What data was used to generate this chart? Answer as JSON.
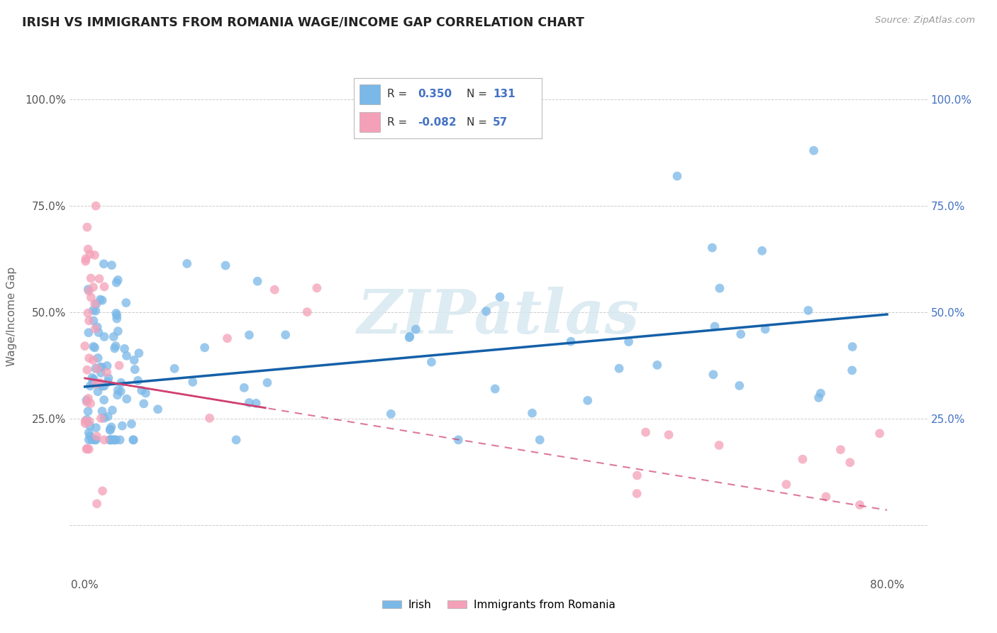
{
  "title": "IRISH VS IMMIGRANTS FROM ROMANIA WAGE/INCOME GAP CORRELATION CHART",
  "source": "Source: ZipAtlas.com",
  "ylabel": "Wage/Income Gap",
  "legend_irish": "Irish",
  "legend_romania": "Immigrants from Romania",
  "R_irish": 0.35,
  "N_irish": 131,
  "R_romania": -0.082,
  "N_romania": 57,
  "irish_color": "#7ab8e8",
  "romania_color": "#f4a0b8",
  "irish_line_color": "#1460a8",
  "romania_line_color": "#d04070",
  "watermark_text": "ZIPatlas",
  "background_color": "#ffffff",
  "grid_color": "#cccccc",
  "x_tick_positions": [
    0.0,
    0.2,
    0.4,
    0.6,
    0.8
  ],
  "x_tick_labels": [
    "0.0%",
    "",
    "",
    "",
    "80.0%"
  ],
  "y_tick_positions": [
    0.0,
    0.25,
    0.5,
    0.75,
    1.0
  ],
  "y_tick_labels_left": [
    "",
    "25.0%",
    "50.0%",
    "75.0%",
    "100.0%"
  ],
  "y_tick_labels_right": [
    "",
    "25.0%",
    "50.0%",
    "75.0%",
    "100.0%"
  ],
  "xlim": [
    -0.015,
    0.84
  ],
  "ylim": [
    -0.12,
    1.1
  ],
  "irish_trend_y0": 0.325,
  "irish_trend_y1": 0.495,
  "romania_trend_y0": 0.345,
  "romania_trend_y1": 0.035
}
